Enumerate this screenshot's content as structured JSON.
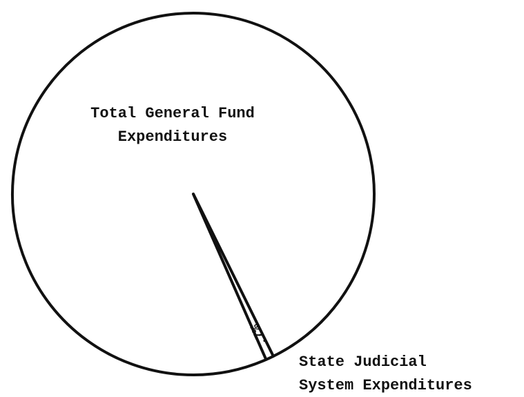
{
  "chart_data": {
    "type": "pie",
    "categories": [
      "Total General Fund Expenditures",
      "State Judicial System Expenditures"
    ],
    "values": [
      99.3,
      0.7
    ],
    "value_labels": [
      null,
      ".7%"
    ],
    "color": "#ffffff"
  }
}
